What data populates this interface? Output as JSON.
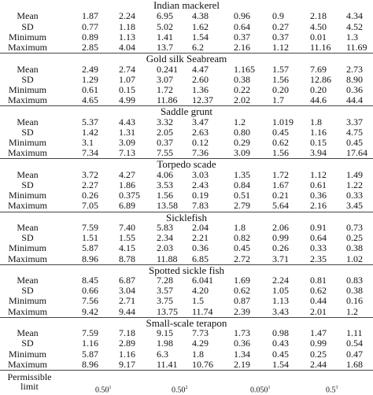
{
  "row_labels": [
    "Mean",
    "SD",
    "Minimum",
    "Maximum"
  ],
  "sections": [
    {
      "title": "Indian mackerel",
      "rows": [
        [
          "1.87",
          "2.24",
          "6.95",
          "4.38",
          "0.96",
          "0.9",
          "2.18",
          "4.34"
        ],
        [
          "0.77",
          "1.18",
          "5.02",
          "1.62",
          "0.64",
          "0.27",
          "4.50",
          "4.52"
        ],
        [
          "0.89",
          "1.13",
          "1.41",
          "1.54",
          "0.37",
          "0.37",
          "0.01",
          "1.3"
        ],
        [
          "2.85",
          "4.04",
          "13.7",
          "6.2",
          "2.16",
          "1.12",
          "11.16",
          "11.69"
        ]
      ]
    },
    {
      "title": "Gold silk Seabream",
      "rows": [
        [
          "2.49",
          "2.74",
          "0.241",
          "4.47",
          "1.165",
          "1.57",
          "7.69",
          "2.73"
        ],
        [
          "1.29",
          "1.07",
          "3.07",
          "2.60",
          "0.38",
          "1.56",
          "12.86",
          "8.90"
        ],
        [
          "0.61",
          "0.15",
          "1.72",
          "1.36",
          "0.22",
          "0.20",
          "0.20",
          "0.36"
        ],
        [
          "4.65",
          "4.99",
          "11.86",
          "12.37",
          "2.02",
          "1.7",
          "44.6",
          "44.4"
        ]
      ]
    },
    {
      "title": "Saddle grunt",
      "rows": [
        [
          "5.37",
          "4.43",
          "3.32",
          "3.47",
          "1.2",
          "1.019",
          "1.8",
          "3.37"
        ],
        [
          "1.42",
          "1.31",
          "2.05",
          "2.63",
          "0.80",
          "0.45",
          "1.16",
          "4.75"
        ],
        [
          "3.1",
          "3.09",
          "0.37",
          "0.12",
          "0.29",
          "0.62",
          "0.15",
          "0.45"
        ],
        [
          "7.34",
          "7.13",
          "7.55",
          "7.36",
          "3.09",
          "1.56",
          "3.94",
          "17.64"
        ]
      ]
    },
    {
      "title": "Torpedo scade",
      "rows": [
        [
          "3.72",
          "4.27",
          "4.06",
          "3.03",
          "1.35",
          "1.72",
          "1.12",
          "1.49"
        ],
        [
          "2.27",
          "1.86",
          "3.53",
          "2.43",
          "0.84",
          "1.67",
          "0.61",
          "1.22"
        ],
        [
          "0.26",
          "0.375",
          "1.56",
          "0.19",
          "0.51",
          "0.21",
          "0.36",
          "0.33"
        ],
        [
          "7.05",
          "6.89",
          "13.58",
          "7.83",
          "2.79",
          "5.64",
          "2.16",
          "3.45"
        ]
      ]
    },
    {
      "title": "Sicklefish",
      "rows": [
        [
          "7.59",
          "7.40",
          "5.83",
          "2.04",
          "1.8",
          "2.06",
          "0.91",
          "0.73"
        ],
        [
          "1.51",
          "1.55",
          "2.34",
          "2.21",
          "0.82",
          "0.99",
          "0.64",
          "0.25"
        ],
        [
          "5.87",
          "4.15",
          "2.03",
          "0.36",
          "0.45",
          "0.26",
          "0.33",
          "0.38"
        ],
        [
          "8.96",
          "8.78",
          "11.88",
          "6.85",
          "2.72",
          "3.71",
          "2.35",
          "1.02"
        ]
      ]
    },
    {
      "title": "Spotted sickle fish",
      "rows": [
        [
          "8.45",
          "6.87",
          "7.28",
          "6.041",
          "1.69",
          "2.24",
          "0.81",
          "0.83"
        ],
        [
          "0.66",
          "3.04",
          "3.57",
          "4.20",
          "0.62",
          "1.05",
          "0.62",
          "0.38"
        ],
        [
          "7.56",
          "2.71",
          "3.75",
          "1.5",
          "0.87",
          "1.13",
          "0.44",
          "0.16"
        ],
        [
          "9.42",
          "9.44",
          "13.75",
          "11.74",
          "2.39",
          "3.43",
          "2.01",
          "1.2"
        ]
      ]
    },
    {
      "title": "Small-scale terapon",
      "rows": [
        [
          "7.59",
          "7.18",
          "9.15",
          "7.73",
          "1.73",
          "0.98",
          "1.47",
          "1.11"
        ],
        [
          "1.16",
          "2.89",
          "1.98",
          "4.29",
          "0.36",
          "0.43",
          "0.99",
          "0.54"
        ],
        [
          "5.87",
          "1.16",
          "6.3",
          "1.8",
          "1.34",
          "0.45",
          "0.25",
          "0.47"
        ],
        [
          "8.96",
          "9.17",
          "11.41",
          "10.76",
          "2.19",
          "1.54",
          "2.44",
          "1.68"
        ]
      ]
    }
  ],
  "permissible": {
    "label_line1": "Permissible",
    "label_line2": "limit",
    "values": [
      {
        "value": "0.50",
        "sup": "1"
      },
      {
        "value": "0.50",
        "sup": "2"
      },
      {
        "value": "0.050",
        "sup": "1"
      },
      {
        "value": "0.5",
        "sup": "3"
      }
    ]
  }
}
